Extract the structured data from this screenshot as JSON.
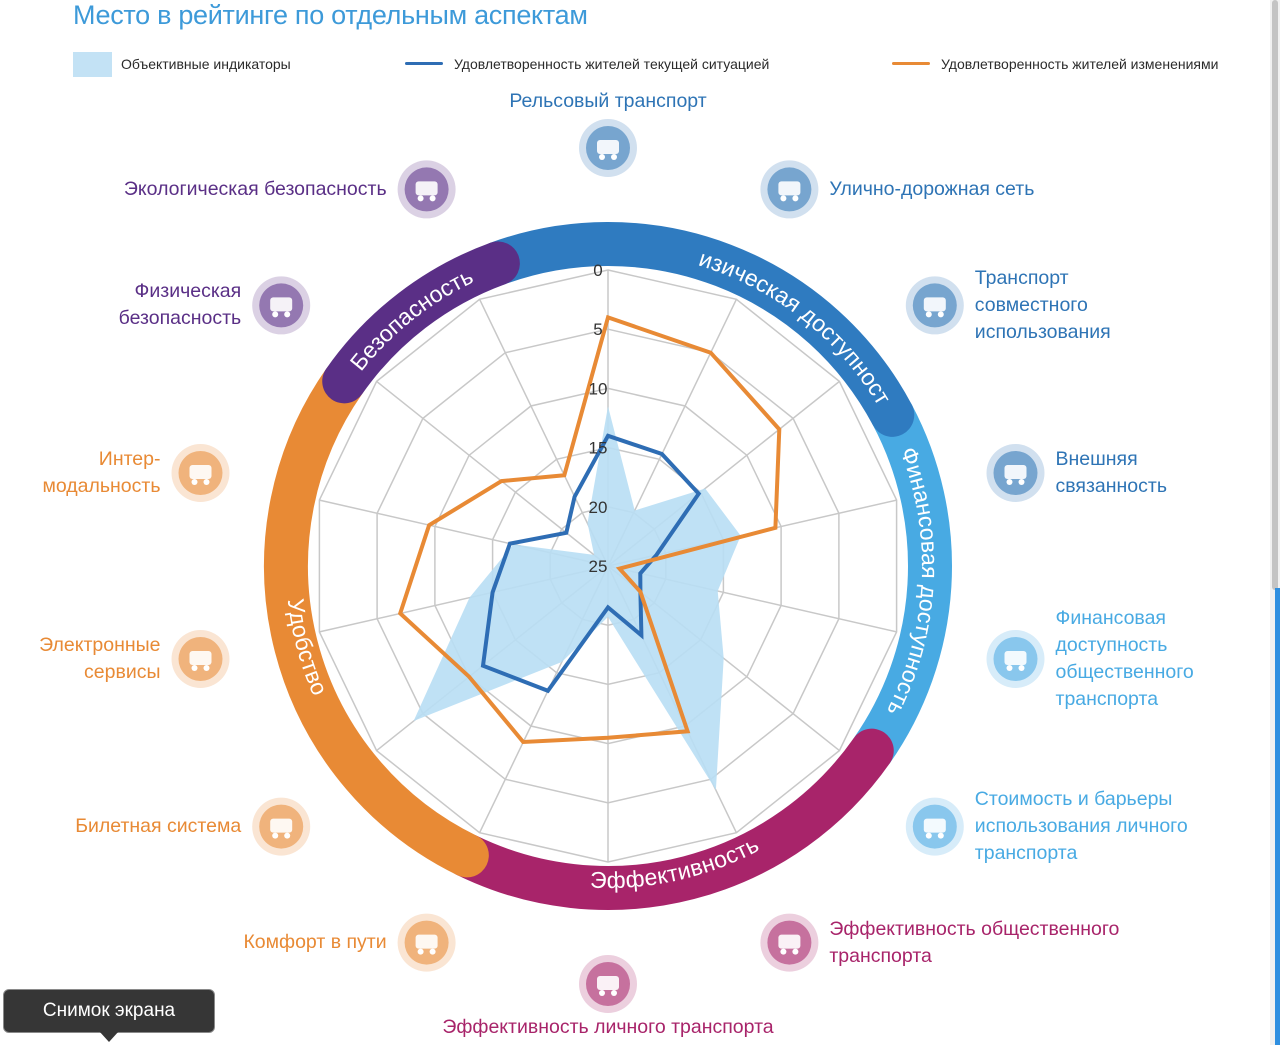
{
  "page": {
    "title": "Место в рейтинге по отдельным аспектам",
    "tooltip": "Снимок экрана"
  },
  "legend": {
    "objective": "Объективные индикаторы",
    "current": "Удовлетворенность жителей текущей ситуацией",
    "changes": "Удовлетворенность жителей изменениями"
  },
  "colors": {
    "objective_fill": "#b8def4",
    "current": "#2e6db4",
    "changes": "#e88a35",
    "grid": "#c8c8c8",
    "ring_physical": "#2f7bc0",
    "ring_financial": "#48aae3",
    "ring_efficiency": "#a8246a",
    "ring_comfort": "#e88a35",
    "ring_safety": "#5a2f86"
  },
  "categories": [
    {
      "name": "Рельсовый транспорт",
      "label": "Рельсовый транспорт",
      "icon": "train-icon",
      "color": "#2e74b5"
    },
    {
      "name": "Улично-дорожная сеть",
      "label": "Улично-дорожная сеть",
      "icon": "road-network-icon",
      "color": "#2e74b5"
    },
    {
      "name": "Транспорт совместного использования",
      "label": "Транспорт\nсовместного\nиспользования",
      "icon": "bike-sharing-icon",
      "color": "#2e74b5"
    },
    {
      "name": "Внешняя связанность",
      "label": "Внешняя\nсвязанность",
      "icon": "airplane-icon",
      "color": "#2e74b5"
    },
    {
      "name": "Финансовая доступность общественного транспорта",
      "label": "Финансовая\nдоступность\nобщественного\nтранспорта",
      "icon": "payment-icon",
      "color": "#48aae3"
    },
    {
      "name": "Стоимость и барьеры использования личного транспорта",
      "label": "Стоимость и барьеры\nиспользования личного\nтранспорта",
      "icon": "car-cost-icon",
      "color": "#48aae3"
    },
    {
      "name": "Эффективность общественного транспорта",
      "label": "Эффективность общественного\nтранспорта",
      "icon": "runner-icon",
      "color": "#a8246a"
    },
    {
      "name": "Эффективность личного транспорта",
      "label": "Эффективность личного транспорта",
      "icon": "traffic-jam-icon",
      "color": "#a8246a"
    },
    {
      "name": "Комфорт в пути",
      "label": "Комфорт в пути",
      "icon": "comfort-icon",
      "color": "#e88a35"
    },
    {
      "name": "Билетная система",
      "label": "Билетная система",
      "icon": "ticket-icon",
      "color": "#e88a35"
    },
    {
      "name": "Электронные сервисы",
      "label": "Электронные\nсервисы",
      "icon": "smartphone-icon",
      "color": "#e88a35"
    },
    {
      "name": "Интермодальность",
      "label": "Интер-\nмодальность",
      "icon": "bus-icon",
      "color": "#e88a35"
    },
    {
      "name": "Физическая безопасность",
      "label": "Физическая\nбезопасность",
      "icon": "crash-icon",
      "color": "#5a2f86"
    },
    {
      "name": "Экологическая безопасность",
      "label": "Экологическая безопасность",
      "icon": "eco-icon",
      "color": "#5a2f86"
    }
  ],
  "ring": [
    {
      "label": "Физическая доступность",
      "color": "#2f7bc0"
    },
    {
      "label": "Финансовая доступность",
      "color": "#48aae3"
    },
    {
      "label": "Эффективность",
      "color": "#a8246a"
    },
    {
      "label": "Удобство",
      "color": "#e88a35"
    },
    {
      "label": "Безопасность",
      "color": "#5a2f86"
    }
  ],
  "chart_data": {
    "type": "radar",
    "title": "Место в рейтинге по отдельным аспектам",
    "axis": {
      "min": 0,
      "max": 25,
      "ticks": [
        0,
        5,
        10,
        15,
        20,
        25
      ],
      "reversed": true,
      "grid": true
    },
    "legend_position": "top",
    "series": [
      {
        "name": "Объективные индикаторы",
        "style": "area",
        "values": [
          11.5,
          19.8,
          14.5,
          13.5,
          15.5,
          12.5,
          4.0,
          20.7,
          16.0,
          4.0,
          13.0,
          16.8,
          23.5,
          21.0
        ]
      },
      {
        "name": "Удовлетворенность жителей текущей ситуацией",
        "style": "line",
        "values": [
          14.0,
          14.5,
          15.2,
          20.8,
          22.2,
          21.5,
          18.5,
          21.5,
          13.3,
          11.5,
          15.0,
          16.5,
          20.5,
          18.5
        ]
      },
      {
        "name": "Удовлетворенность жителей изменениями",
        "style": "line",
        "values": [
          4.0,
          5.0,
          6.5,
          10.5,
          24.0,
          21.5,
          9.5,
          10.5,
          8.5,
          10.0,
          7.0,
          9.5,
          13.5,
          16.5
        ]
      }
    ]
  }
}
